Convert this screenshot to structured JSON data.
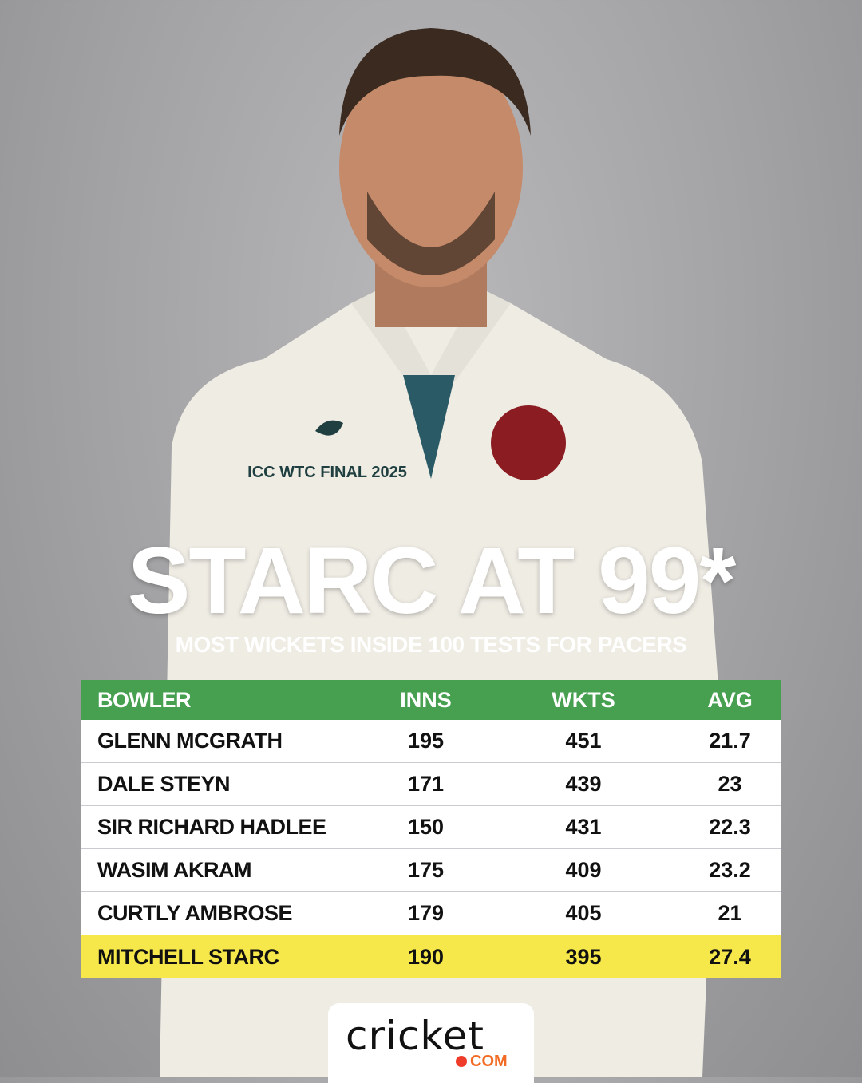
{
  "title": "STARC AT 99*",
  "subtitle": "MOST WICKETS INSIDE 100 TESTS FOR PACERS",
  "table": {
    "headers": [
      "BOWLER",
      "INNS",
      "WKTS",
      "AVG"
    ],
    "rows": [
      [
        "GLENN MCGRATH",
        "195",
        "451",
        "21.7"
      ],
      [
        "DALE STEYN",
        "171",
        "439",
        "23"
      ],
      [
        "SIR RICHARD HADLEE",
        "150",
        "431",
        "22.3"
      ],
      [
        "WASIM AKRAM",
        "175",
        "409",
        "23.2"
      ],
      [
        "CURTLY AMBROSE",
        "179",
        "405",
        "21"
      ],
      [
        "MITCHELL STARC",
        "190",
        "395",
        "27.4"
      ]
    ],
    "highlighted_row": "MITCHELL STARC"
  },
  "shirt_text": {
    "badge": "ICC WTC FINAL 2025"
  },
  "logo": {
    "word": "cricket",
    "suffix": "COM"
  },
  "colors": {
    "header_green": "#46a050",
    "highlight_yellow": "#f6e84a",
    "logo_orange": "#f26b24"
  }
}
